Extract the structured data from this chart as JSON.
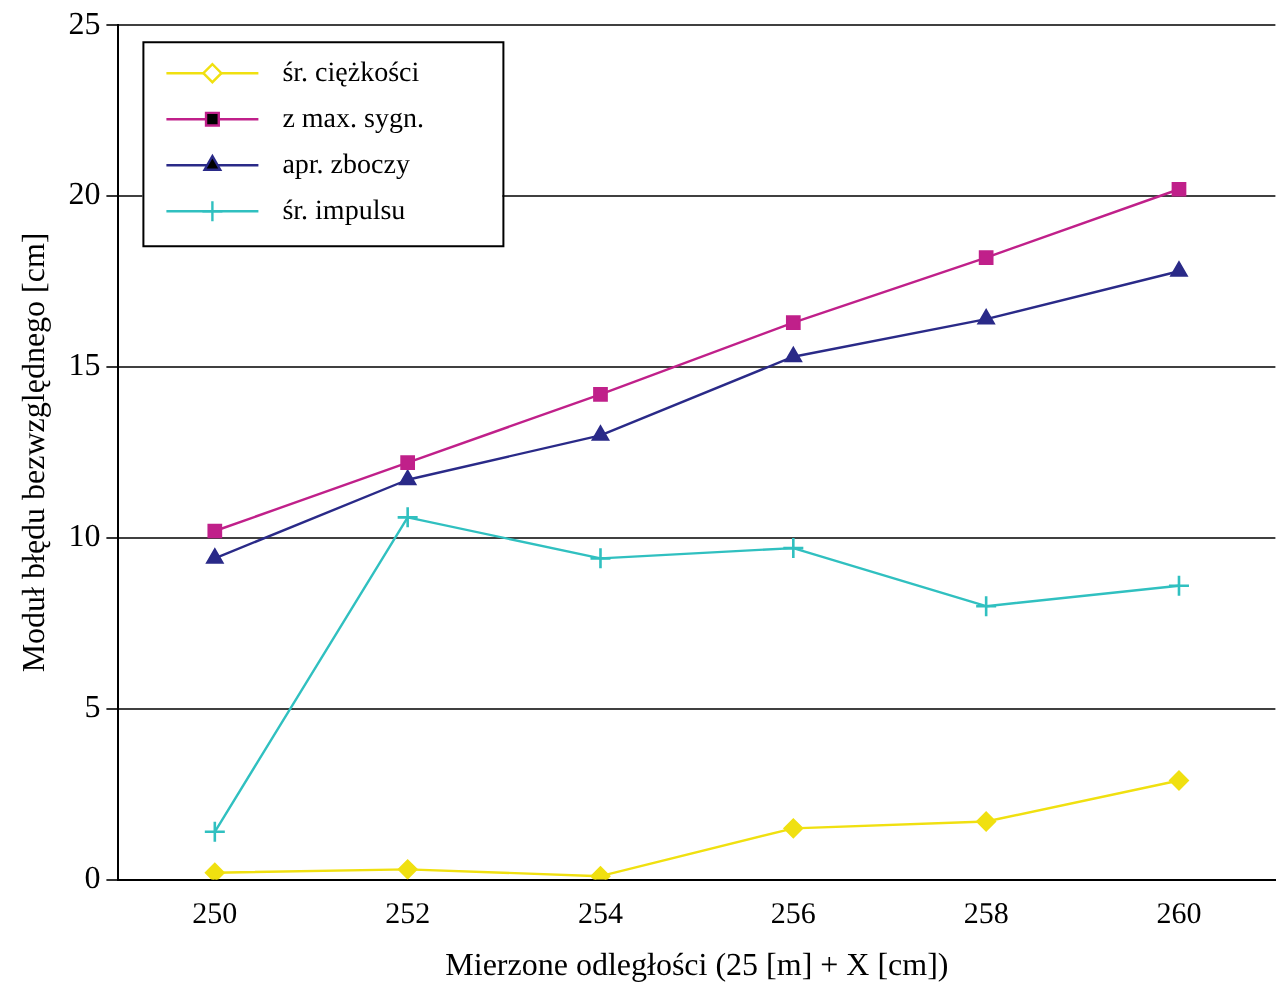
{
  "chart_data": {
    "type": "line",
    "xlabel": "Mierzone odległości (25 [m] + X [cm])",
    "ylabel": "Moduł błędu bezwzględnego [cm]",
    "categories": [
      "250",
      "252",
      "254",
      "256",
      "258",
      "260"
    ],
    "series": [
      {
        "name": "śr. ciężkości",
        "color": "#f0e010",
        "marker": "diamond",
        "values": [
          0.2,
          0.3,
          0.1,
          1.5,
          1.7,
          2.9
        ]
      },
      {
        "name": "z max. sygn.",
        "color": "#c0208a",
        "marker": "square",
        "values": [
          10.2,
          12.2,
          14.2,
          16.3,
          18.2,
          20.2
        ]
      },
      {
        "name": "apr. zboczy",
        "color": "#2a2a88",
        "marker": "triangle",
        "values": [
          9.4,
          11.7,
          13.0,
          15.3,
          16.4,
          17.8
        ]
      },
      {
        "name": "śr. impulsu",
        "color": "#30c0c0",
        "marker": "cross",
        "values": [
          1.4,
          10.6,
          9.4,
          9.7,
          8.0,
          8.6
        ]
      }
    ],
    "ylim": [
      0,
      25
    ],
    "yticks": [
      0,
      5,
      10,
      15,
      20,
      25
    ],
    "grid": "y",
    "legend": "top left",
    "line_style": "solid"
  }
}
